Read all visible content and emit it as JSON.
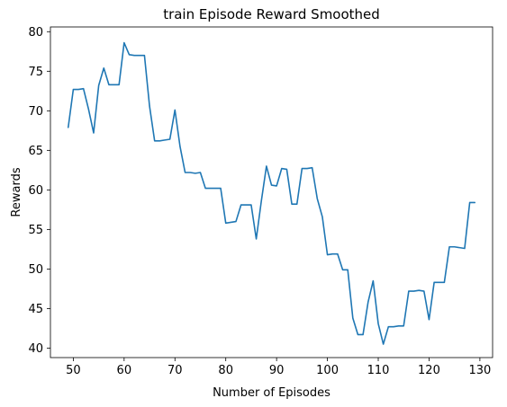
{
  "chart_data": {
    "type": "line",
    "title": "train Episode Reward Smoothed",
    "xlabel": "Number of Episodes",
    "ylabel": "Rewards",
    "xlim": [
      45.5,
      132.5
    ],
    "ylim": [
      38.8,
      80.6
    ],
    "xticks": [
      50,
      60,
      70,
      80,
      90,
      100,
      110,
      120,
      130
    ],
    "yticks": [
      40,
      45,
      50,
      55,
      60,
      65,
      70,
      75,
      80
    ],
    "grid": false,
    "line_color": "#1f77b4",
    "series": [
      {
        "x": [
          49,
          50,
          51,
          52,
          53,
          54,
          55,
          56,
          57,
          58,
          59,
          60,
          61,
          62,
          63,
          64,
          65,
          66,
          67,
          68,
          69,
          70,
          71,
          72,
          73,
          74,
          75,
          76,
          77,
          78,
          79,
          80,
          81,
          82,
          83,
          84,
          85,
          86,
          87,
          88,
          89,
          90,
          91,
          92,
          93,
          94,
          95,
          96,
          97,
          98,
          99,
          100,
          101,
          102,
          103,
          104,
          105,
          106,
          107,
          108,
          109,
          110,
          111,
          112,
          113,
          114,
          115,
          116,
          117,
          118,
          119,
          120,
          121,
          122,
          123,
          124,
          125,
          126,
          127,
          128,
          129
        ],
        "y": [
          67.9,
          72.7,
          72.7,
          72.8,
          70.2,
          67.2,
          73.2,
          75.4,
          73.3,
          73.3,
          73.3,
          78.6,
          77.1,
          77.0,
          77.0,
          77.0,
          70.6,
          66.2,
          66.2,
          66.3,
          66.4,
          70.1,
          65.5,
          62.2,
          62.2,
          62.1,
          62.2,
          60.2,
          60.2,
          60.2,
          60.2,
          55.8,
          55.9,
          56.0,
          58.1,
          58.1,
          58.1,
          53.8,
          58.6,
          63.0,
          60.6,
          60.5,
          62.7,
          62.6,
          58.2,
          58.2,
          62.7,
          62.7,
          62.8,
          58.9,
          56.6,
          51.8,
          51.9,
          51.9,
          49.9,
          49.9,
          43.8,
          41.7,
          41.7,
          45.8,
          48.5,
          43.1,
          40.5,
          42.7,
          42.7,
          42.8,
          42.8,
          47.2,
          47.2,
          47.3,
          47.2,
          43.6,
          48.3,
          48.3,
          48.3,
          52.8,
          52.8,
          52.7,
          52.6,
          58.4,
          58.4
        ]
      }
    ]
  }
}
